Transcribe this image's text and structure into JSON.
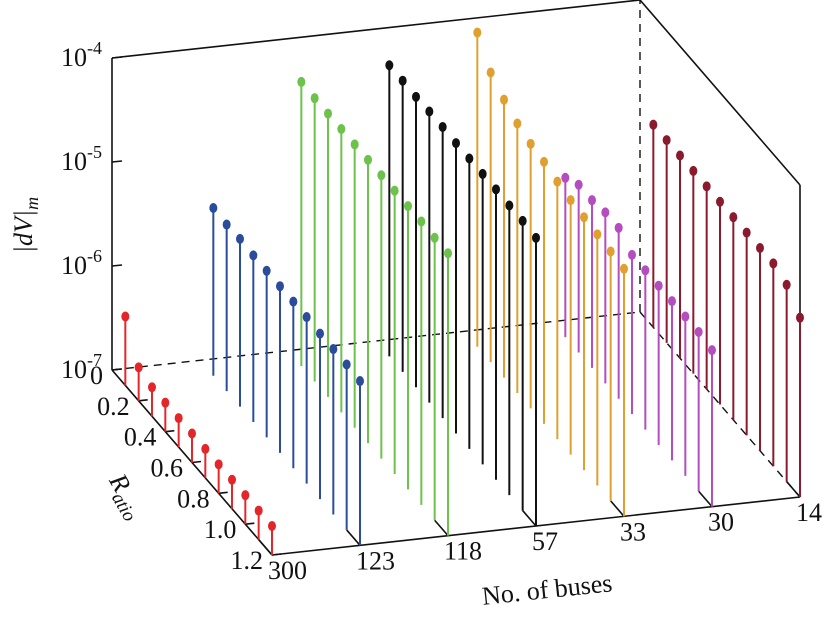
{
  "chart_data": {
    "type": "stem3d",
    "z_label": "|dV|m",
    "x_label": "Ratio",
    "y_label": "No. of buses",
    "x": [
      0.1,
      0.2,
      0.3,
      0.4,
      0.5,
      0.6,
      0.7,
      0.8,
      0.9,
      1.0,
      1.1,
      1.2
    ],
    "xlim": [
      0,
      1.2
    ],
    "xticks": [
      0,
      0.2,
      0.4,
      0.6,
      0.8,
      {
        "value": 1.0,
        "label": "1.0"
      },
      1.2
    ],
    "categories": [
      "300",
      "123",
      "118",
      "57",
      "33",
      "30",
      "14"
    ],
    "zlim": [
      1e-07,
      0.0001
    ],
    "zscale": "log",
    "zticks": [
      {
        "value": 1e-07,
        "label": "10-7"
      },
      {
        "value": 1e-06,
        "label": "10-6"
      },
      {
        "value": 1e-05,
        "label": "10-5"
      },
      {
        "value": 0.0001,
        "label": "10-4"
      }
    ],
    "series": [
      {
        "color": "#e3262a",
        "values": [
          4.6e-07,
          2.1e-07,
          1.9e-07,
          1.9e-07,
          1.9e-07,
          1.9e-07,
          1.9e-07,
          1.9e-07,
          1.9e-07,
          1.9e-07,
          1.9e-07,
          1.9e-07
        ]
      },
      {
        "color": "#2b4c9a",
        "values": [
          4.1e-06,
          4e-06,
          4.1e-06,
          4e-06,
          4e-06,
          4e-06,
          4e-06,
          4e-06,
          3.9e-06,
          3.9e-06,
          3.9e-06,
          3.8e-06
        ]
      },
      {
        "color": "#6cc24a",
        "values": [
          5.4e-05,
          5.3e-05,
          5.3e-05,
          5.3e-05,
          5.3e-05,
          5.3e-05,
          5.3e-05,
          5.3e-05,
          5.3e-05,
          5.3e-05,
          5.2e-05,
          5.2e-05
        ]
      },
      {
        "color": "#111111",
        "values": [
          6.3e-05,
          6.3e-05,
          6.2e-05,
          6.3e-05,
          6.3e-05,
          6.2e-05,
          6.2e-05,
          6.2e-05,
          6.2e-05,
          6.1e-05,
          6.1e-05,
          5.9e-05
        ]
      },
      {
        "color": "#e0a030",
        "values": [
          0.000105,
          6.1e-05,
          4.7e-05,
          3.9e-05,
          3.5e-05,
          3.3e-05,
          3e-05,
          2.8e-05,
          2.7e-05,
          2.6e-05,
          2.5e-05,
          2.4e-05
        ]
      },
      {
        "color": "#b44ec0",
        "values": [
          3.4e-06,
          4.1e-06,
          4.1e-06,
          4.4e-06,
          4.4e-06,
          3.4e-06,
          3.4e-06,
          3.4e-06,
          3.4e-06,
          3.4e-06,
          3.4e-06,
          3.2e-06
        ]
      },
      {
        "color": "#8b1a2e",
        "values": [
          8.9e-06,
          8.9e-06,
          8.9e-06,
          8.9e-06,
          8.9e-06,
          8.9e-06,
          8.9e-06,
          8.9e-06,
          8.9e-06,
          8.9e-06,
          7.8e-06,
          5.3e-06
        ]
      }
    ]
  }
}
